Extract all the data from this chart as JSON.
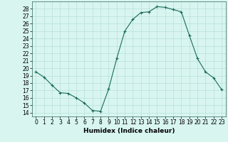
{
  "x": [
    0,
    1,
    2,
    3,
    4,
    5,
    6,
    7,
    8,
    9,
    10,
    11,
    12,
    13,
    14,
    15,
    16,
    17,
    18,
    19,
    20,
    21,
    22,
    23
  ],
  "y": [
    19.5,
    18.8,
    17.7,
    16.7,
    16.6,
    16.0,
    15.3,
    14.3,
    14.2,
    17.2,
    21.3,
    25.0,
    26.6,
    27.5,
    27.6,
    28.3,
    28.2,
    27.9,
    27.6,
    24.4,
    21.3,
    19.5,
    18.7,
    17.1
  ],
  "xlabel": "Humidex (Indice chaleur)",
  "xlim": [
    -0.5,
    23.5
  ],
  "ylim": [
    13.5,
    29
  ],
  "yticks": [
    14,
    15,
    16,
    17,
    18,
    19,
    20,
    21,
    22,
    23,
    24,
    25,
    26,
    27,
    28
  ],
  "xticks": [
    0,
    1,
    2,
    3,
    4,
    5,
    6,
    7,
    8,
    9,
    10,
    11,
    12,
    13,
    14,
    15,
    16,
    17,
    18,
    19,
    20,
    21,
    22,
    23
  ],
  "line_color": "#1a6b5a",
  "marker": "+",
  "bg_color": "#d8f5f0",
  "grid_color": "#b8e0da",
  "label_fontsize": 6.5,
  "tick_fontsize": 5.5
}
